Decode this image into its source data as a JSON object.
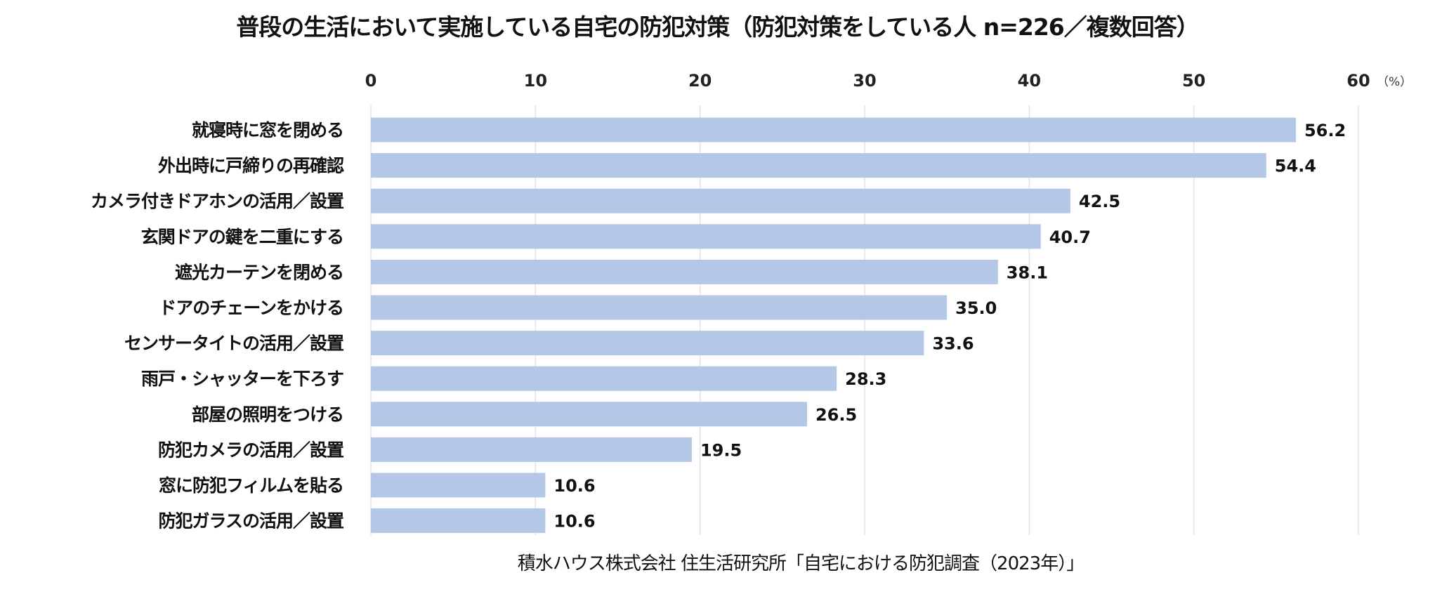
{
  "chart_data": {
    "type": "bar",
    "orientation": "horizontal",
    "title": "普段の生活において実施している自宅の防犯対策（防犯対策をしている人 n=226／複数回答）",
    "unit_label": "（%）",
    "categories": [
      "就寝時に窓を閉める",
      "外出時に戸締りの再確認",
      "カメラ付きドアホンの活用／設置",
      "玄関ドアの鍵を二重にする",
      "遮光カーテンを閉める",
      "ドアのチェーンをかける",
      "センサータイトの活用／設置",
      "雨戸・シャッターを下ろす",
      "部屋の照明をつける",
      "防犯カメラの活用／設置",
      "窓に防犯フィルムを貼る",
      "防犯ガラスの活用／設置"
    ],
    "values": [
      56.2,
      54.4,
      42.5,
      40.7,
      38.1,
      35.0,
      33.6,
      28.3,
      26.5,
      19.5,
      10.6,
      10.6
    ],
    "value_labels": [
      "56.2",
      "54.4",
      "42.5",
      "40.7",
      "38.1",
      "35.0",
      "33.6",
      "28.3",
      "26.5",
      "19.5",
      "10.6",
      "10.6"
    ],
    "xlim": [
      0,
      60
    ],
    "ticks": [
      "0",
      "10",
      "20",
      "30",
      "40",
      "50",
      "60"
    ],
    "axis_position": "top",
    "grid": true,
    "bar_color": "#b4c7e7",
    "source": "積水ハウス株式会社 住生活研究所「自宅における防犯調査（2023年）」"
  }
}
